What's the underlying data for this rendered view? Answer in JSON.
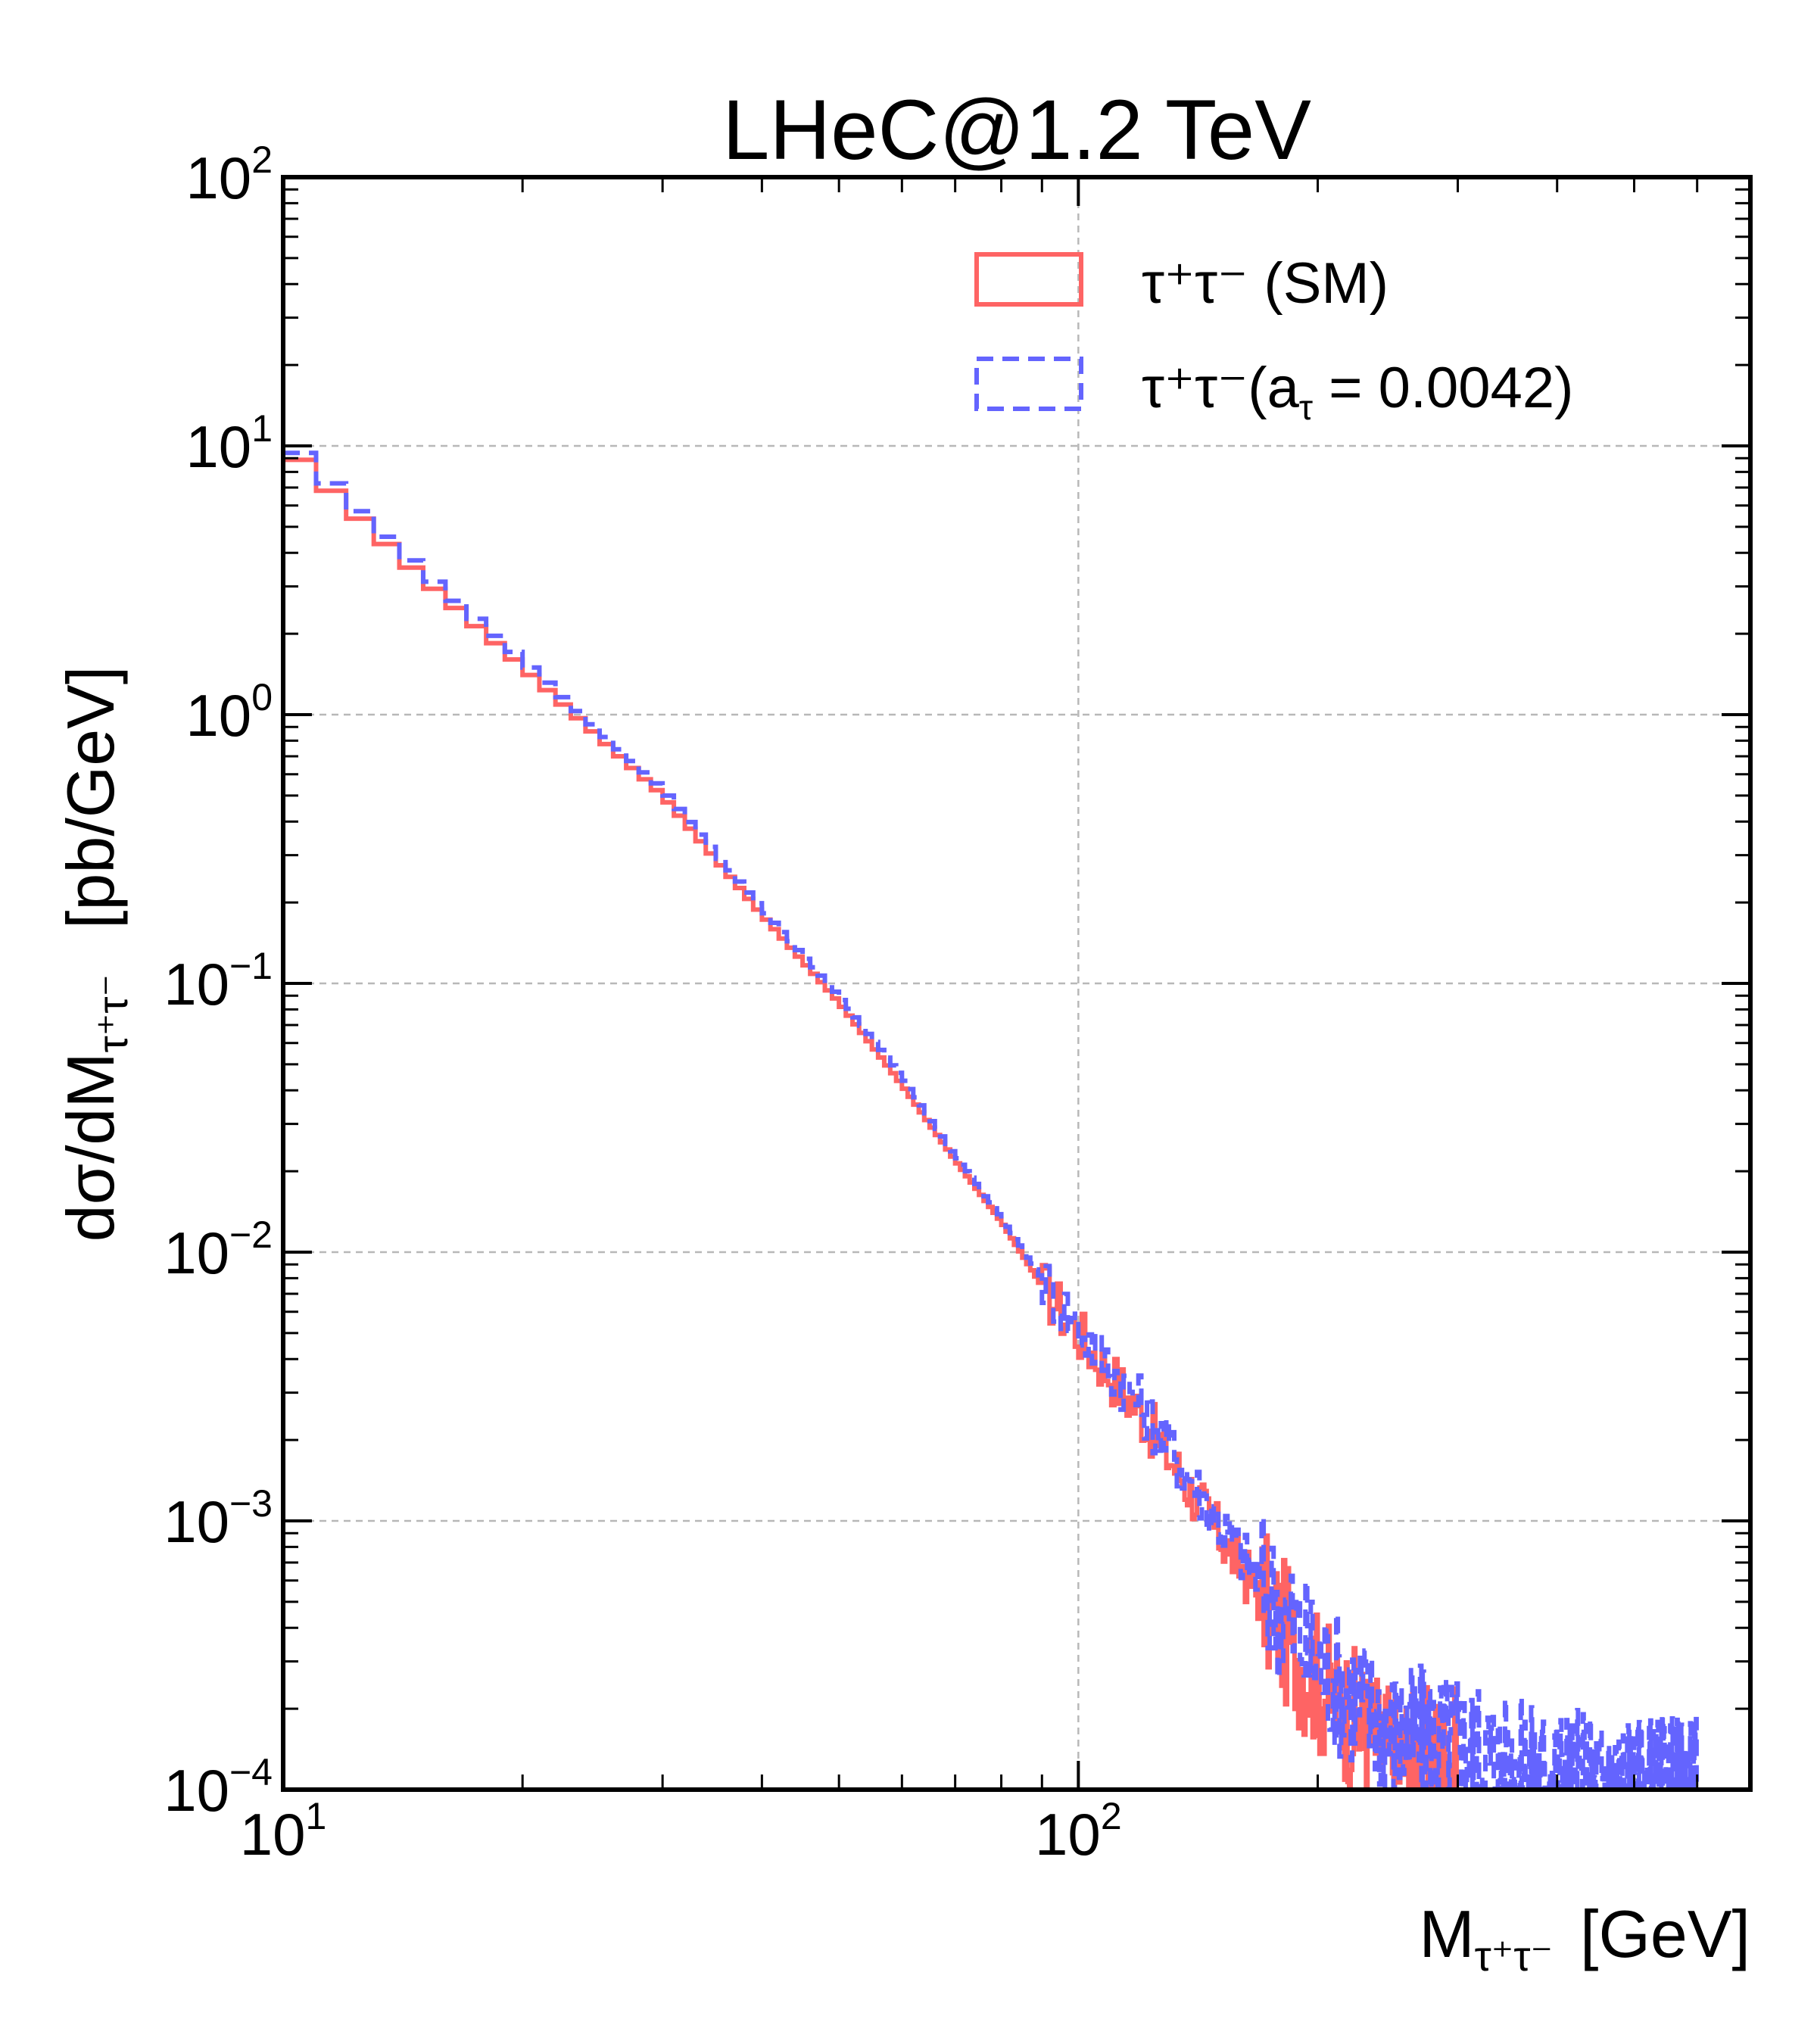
{
  "chart_data": {
    "type": "line",
    "title": "LHeC@1.2 TeV",
    "xlabel": {
      "base": "M",
      "sub": "τ⁺τ⁻",
      "unit": "[GeV]"
    },
    "ylabel": {
      "base": "dσ/dM",
      "sub": "τ⁺τ⁻",
      "unit": "[pb/GeV]"
    },
    "xscale": "log",
    "yscale": "log",
    "xlim": [
      10,
      700
    ],
    "ylim": [
      0.0001,
      100
    ],
    "grid": true,
    "legend_position": "top-right",
    "x_ticks": [
      {
        "base": "10",
        "exp": "1",
        "value": 10
      },
      {
        "base": "10",
        "exp": "2",
        "value": 100
      }
    ],
    "y_ticks": [
      {
        "base": "10",
        "exp": "−4",
        "value": 0.0001
      },
      {
        "base": "10",
        "exp": "−3",
        "value": 0.001
      },
      {
        "base": "10",
        "exp": "−2",
        "value": 0.01
      },
      {
        "base": "10",
        "exp": "−1",
        "value": 0.1
      },
      {
        "base": "10",
        "exp": "0",
        "value": 1
      },
      {
        "base": "10",
        "exp": "1",
        "value": 10
      },
      {
        "base": "10",
        "exp": "2",
        "value": 100
      }
    ],
    "series": [
      {
        "name": "τ⁺τ⁻ (SM)",
        "legend": {
          "main": "τ⁺τ⁻ (SM)"
        },
        "color": "#fe6464",
        "style": "solid",
        "points": [
          [
            10,
            10.2
          ],
          [
            12,
            6.0
          ],
          [
            15,
            3.2
          ],
          [
            20,
            1.5
          ],
          [
            30,
            0.5
          ],
          [
            40,
            0.18
          ],
          [
            50,
            0.085
          ],
          [
            60,
            0.042
          ],
          [
            70,
            0.022
          ],
          [
            80,
            0.013
          ],
          [
            90,
            0.0075
          ],
          [
            100,
            0.005
          ],
          [
            120,
            0.0025
          ],
          [
            150,
            0.0009
          ],
          [
            200,
            0.00025
          ],
          [
            250,
            0.00013
          ],
          [
            300,
            0.00013
          ]
        ]
      },
      {
        "name": "τ⁺τ⁻(aτ = 0.0042)",
        "legend": {
          "main": "τ⁺τ⁻(a",
          "sub": "τ",
          "rest": " = 0.0042)"
        },
        "color": "#6464fe",
        "style": "dashed",
        "points": [
          [
            10,
            10.8
          ],
          [
            12,
            6.4
          ],
          [
            15,
            3.4
          ],
          [
            20,
            1.6
          ],
          [
            30,
            0.53
          ],
          [
            40,
            0.19
          ],
          [
            50,
            0.09
          ],
          [
            60,
            0.045
          ],
          [
            70,
            0.023
          ],
          [
            80,
            0.0135
          ],
          [
            90,
            0.008
          ],
          [
            100,
            0.0053
          ],
          [
            120,
            0.0027
          ],
          [
            150,
            0.001
          ],
          [
            200,
            0.0003
          ],
          [
            250,
            0.00016
          ],
          [
            300,
            0.00015
          ],
          [
            350,
            0.00012
          ],
          [
            500,
            0.0001
          ],
          [
            600,
            0.0001
          ]
        ]
      }
    ]
  }
}
